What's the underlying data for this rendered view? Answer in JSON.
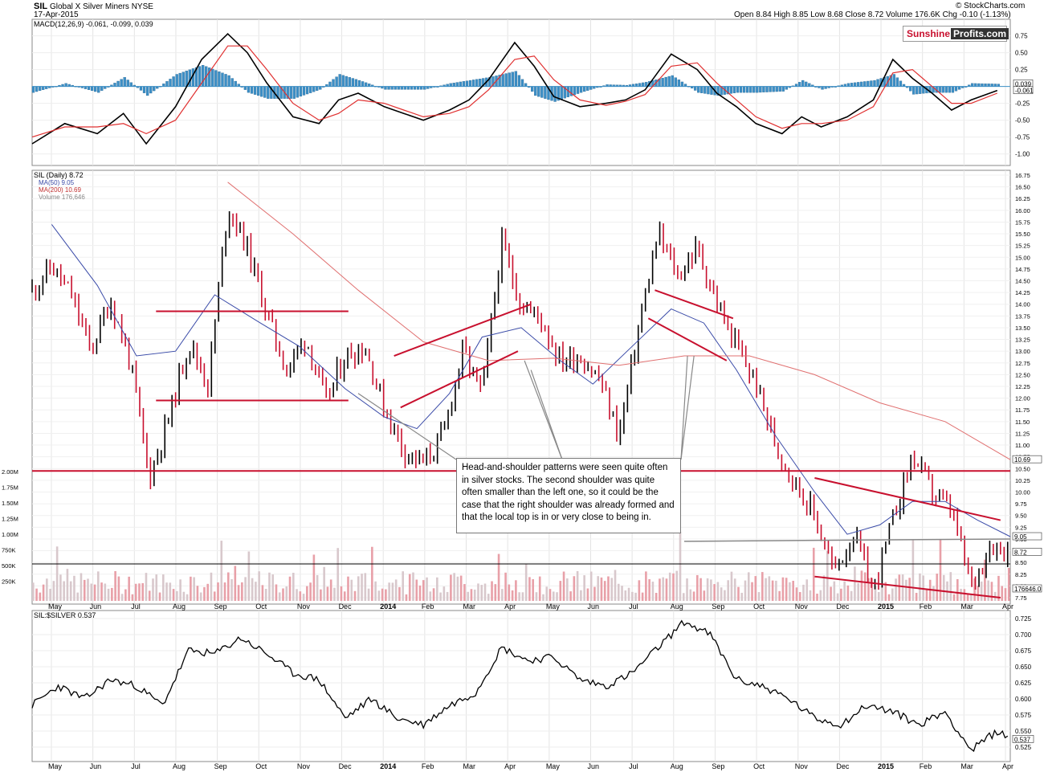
{
  "header": {
    "symbol": "SIL",
    "name": "Global X Silver Miners NYSE",
    "date": "17-Apr-2015",
    "source": "© StockCharts.com",
    "quote": "Open 8.84  High 8.85  Low 8.68  Close 8.72  Volume 176.6K  Chg -0.10 (-1.13%)"
  },
  "logo": {
    "part1": "Sunshine",
    "part2": "Profits.com"
  },
  "colors": {
    "price_up": "#000000",
    "price_down": "#c8102e",
    "ma50": "#3a4ba8",
    "ma200": "#e07070",
    "trendline": "#c8102e",
    "macd_hist": "#3c8fc6",
    "volume": "#e8a0a8"
  },
  "annotation": "Head-and-shoulder patterns were seen quite often in silver stocks. The second shoulder was quite often smaller than the left one, so it could be the case that the right shoulder was already formed and that the local top is in or very close to being in.",
  "chart_data": [
    {
      "type": "line",
      "name": "macd_panel",
      "legend": "MACD(12,26,9) -0.061, -0.099, 0.039",
      "y_ticks": [
        "0.75",
        "0.50",
        "0.25",
        "0.00",
        "-0.25",
        "-0.50",
        "-0.75",
        "-1.00"
      ],
      "ylim": [
        -1.1,
        0.9
      ],
      "last_labels": [
        "0.039",
        "-0.061"
      ],
      "series": [
        {
          "name": "MACD",
          "color": "#000000",
          "x": [
            0,
            10,
            20,
            28,
            35,
            44,
            52,
            60,
            66,
            72,
            80,
            88,
            94,
            100,
            108,
            114,
            120,
            128,
            134,
            140,
            148,
            154,
            160,
            168,
            176,
            182,
            188,
            196,
            204,
            210,
            216,
            222,
            230,
            236,
            242,
            250,
            258,
            264,
            270,
            276,
            282,
            288,
            296
          ],
          "values": [
            -0.85,
            -0.55,
            -0.7,
            -0.4,
            -0.85,
            -0.3,
            0.4,
            0.78,
            0.5,
            0.05,
            -0.45,
            -0.55,
            -0.2,
            -0.1,
            -0.3,
            -0.4,
            -0.5,
            -0.35,
            -0.2,
            0.1,
            0.65,
            0.3,
            -0.15,
            -0.3,
            -0.25,
            -0.2,
            -0.05,
            0.48,
            0.25,
            -0.1,
            -0.3,
            -0.55,
            -0.7,
            -0.45,
            -0.6,
            -0.45,
            -0.2,
            0.4,
            0.12,
            -0.1,
            -0.35,
            -0.2,
            -0.06
          ]
        },
        {
          "name": "Signal",
          "color": "#e03030",
          "x": [
            0,
            10,
            20,
            28,
            35,
            44,
            52,
            60,
            66,
            72,
            80,
            88,
            94,
            100,
            108,
            114,
            120,
            128,
            134,
            140,
            148,
            154,
            160,
            168,
            176,
            182,
            188,
            196,
            204,
            210,
            216,
            222,
            230,
            236,
            242,
            250,
            258,
            264,
            270,
            276,
            282,
            288,
            296
          ],
          "values": [
            -0.75,
            -0.6,
            -0.6,
            -0.55,
            -0.7,
            -0.5,
            0.05,
            0.6,
            0.6,
            0.25,
            -0.25,
            -0.5,
            -0.4,
            -0.2,
            -0.25,
            -0.35,
            -0.45,
            -0.4,
            -0.3,
            -0.05,
            0.4,
            0.45,
            0.1,
            -0.2,
            -0.28,
            -0.22,
            -0.12,
            0.3,
            0.35,
            0.05,
            -0.2,
            -0.45,
            -0.62,
            -0.55,
            -0.55,
            -0.5,
            -0.3,
            0.2,
            0.25,
            0.0,
            -0.25,
            -0.25,
            -0.1
          ]
        }
      ]
    },
    {
      "type": "line",
      "name": "price_panel",
      "legend": [
        "SIL (Daily) 8.72",
        "MA(50) 9.05",
        "MA(200) 10.69",
        "Volume 176,646"
      ],
      "y_ticks": [
        "16.75",
        "16.50",
        "16.25",
        "16.00",
        "15.75",
        "15.50",
        "15.25",
        "15.00",
        "14.75",
        "14.50",
        "14.25",
        "14.00",
        "13.75",
        "13.50",
        "13.25",
        "13.00",
        "12.75",
        "12.50",
        "12.25",
        "12.00",
        "11.75",
        "11.50",
        "11.25",
        "11.00",
        "10.75",
        "10.50",
        "10.25",
        "10.00",
        "9.75",
        "9.50",
        "9.25",
        "9.00",
        "8.75",
        "8.50",
        "8.25",
        "8.00",
        "7.75"
      ],
      "ylim": [
        7.75,
        16.75
      ],
      "volume_ticks": [
        "2.00M",
        "1.75M",
        "1.50M",
        "1.25M",
        "1.00M",
        "750K",
        "500K",
        "250K"
      ],
      "last_labels": [
        "10.69",
        "9.05",
        "8.72",
        "176646.0"
      ],
      "series": [
        {
          "name": "SIL",
          "color": "#000000",
          "x": [
            0,
            6,
            12,
            18,
            24,
            30,
            36,
            42,
            48,
            54,
            60,
            66,
            72,
            78,
            84,
            90,
            96,
            102,
            108,
            114,
            120,
            126,
            132,
            138,
            144,
            150,
            156,
            162,
            168,
            174,
            180,
            186,
            192,
            198,
            204,
            210,
            216,
            222,
            228,
            234,
            240,
            246,
            252,
            258,
            264,
            270,
            276,
            282,
            288,
            294,
            300
          ],
          "values": [
            14.3,
            14.8,
            14.2,
            13.0,
            14.1,
            12.8,
            10.3,
            11.6,
            13.2,
            12.3,
            16.1,
            15.2,
            13.8,
            12.6,
            13.3,
            11.9,
            12.9,
            13.1,
            11.8,
            10.9,
            10.6,
            11.2,
            13.0,
            12.1,
            15.3,
            14.0,
            13.7,
            12.8,
            12.9,
            12.4,
            11.2,
            13.5,
            15.5,
            14.6,
            15.2,
            14.0,
            13.1,
            12.3,
            11.0,
            10.2,
            9.5,
            8.3,
            9.1,
            7.9,
            9.4,
            10.8,
            10.0,
            9.6,
            8.0,
            8.9,
            8.72
          ]
        },
        {
          "name": "MA(50)",
          "color": "#3a4ba8",
          "x": [
            6,
            20,
            32,
            44,
            56,
            70,
            82,
            96,
            108,
            118,
            128,
            138,
            150,
            162,
            172,
            184,
            196,
            206,
            216,
            228,
            240,
            250,
            260,
            270,
            280,
            290,
            300
          ],
          "values": [
            15.7,
            14.4,
            12.9,
            13.0,
            14.2,
            13.6,
            13.1,
            12.2,
            11.6,
            11.35,
            12.1,
            13.3,
            13.5,
            12.8,
            12.3,
            13.1,
            13.9,
            13.6,
            12.6,
            11.2,
            10.0,
            9.1,
            9.3,
            9.8,
            9.8,
            9.4,
            9.05
          ]
        },
        {
          "name": "MA(200)",
          "color": "#e07070",
          "x": [
            60,
            80,
            100,
            120,
            140,
            160,
            180,
            200,
            220,
            240,
            260,
            280,
            300
          ],
          "values": [
            16.6,
            15.5,
            14.3,
            13.2,
            12.8,
            12.85,
            12.7,
            12.9,
            12.9,
            12.5,
            11.9,
            11.5,
            10.69
          ]
        }
      ],
      "trendlines": [
        {
          "name": "neckline",
          "value": 10.45
        },
        {
          "name": "upper-box",
          "value": 13.85
        },
        {
          "name": "lower-box",
          "value": 11.95
        }
      ]
    },
    {
      "type": "line",
      "name": "ratio_panel",
      "legend": "SIL:$SILVER 0.537",
      "y_ticks": [
        "0.725",
        "0.700",
        "0.675",
        "0.650",
        "0.625",
        "0.600",
        "0.575",
        "0.550",
        "0.525"
      ],
      "ylim": [
        0.51,
        0.73
      ],
      "last_labels": [
        "0.537"
      ],
      "series": [
        {
          "name": "SIL:$SILVER",
          "color": "#000000",
          "x": [
            0,
            8,
            16,
            24,
            32,
            40,
            48,
            56,
            64,
            72,
            80,
            88,
            96,
            104,
            112,
            120,
            128,
            136,
            144,
            152,
            160,
            168,
            176,
            184,
            192,
            200,
            208,
            216,
            224,
            232,
            240,
            248,
            256,
            264,
            272,
            280,
            288,
            296,
            300
          ],
          "values": [
            0.59,
            0.62,
            0.6,
            0.63,
            0.62,
            0.59,
            0.675,
            0.67,
            0.695,
            0.67,
            0.64,
            0.63,
            0.57,
            0.6,
            0.57,
            0.56,
            0.59,
            0.61,
            0.68,
            0.66,
            0.665,
            0.63,
            0.62,
            0.64,
            0.68,
            0.72,
            0.7,
            0.63,
            0.62,
            0.6,
            0.57,
            0.56,
            0.59,
            0.58,
            0.56,
            0.58,
            0.52,
            0.55,
            0.537
          ]
        }
      ]
    }
  ],
  "x_axis": {
    "months": [
      "May",
      "Jun",
      "Jul",
      "Aug",
      "Sep",
      "Oct",
      "Nov",
      "Dec",
      "2014",
      "Feb",
      "Mar",
      "Apr",
      "May",
      "Jun",
      "Jul",
      "Aug",
      "Sep",
      "Oct",
      "Nov",
      "Dec",
      "2015",
      "Feb",
      "Mar",
      "Apr"
    ]
  }
}
